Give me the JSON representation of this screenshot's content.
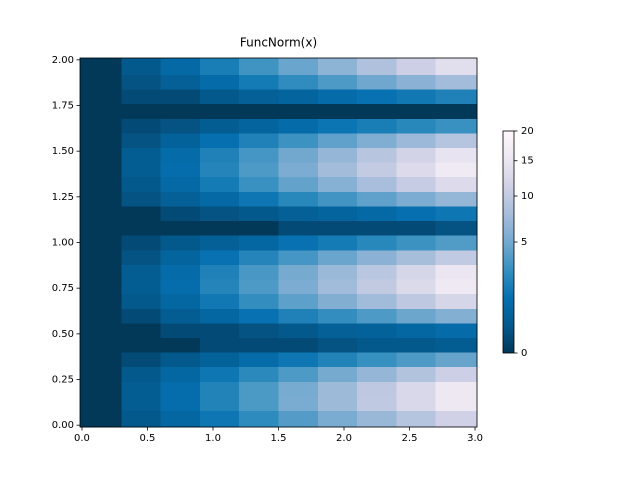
{
  "chart_data": {
    "type": "heatmap",
    "title": "FuncNorm(x)",
    "colormap": [
      "#023858",
      "#045a8d",
      "#0570b0",
      "#3690c0",
      "#74a9cf",
      "#a6bddb",
      "#d0d1e6",
      "#ece7f2",
      "#fff7fb"
    ],
    "norm": "sqrt",
    "xlim": [
      -0.015,
      3.015
    ],
    "ylim": [
      -0.01,
      2.01
    ],
    "xticks": [
      {
        "value": 0,
        "label": "0.0"
      },
      {
        "value": 0.5,
        "label": "0.5"
      },
      {
        "value": 1,
        "label": "1.0"
      },
      {
        "value": 1.5,
        "label": "1.5"
      },
      {
        "value": 2,
        "label": "2.0"
      },
      {
        "value": 2.5,
        "label": "2.5"
      },
      {
        "value": 3,
        "label": "3.0"
      }
    ],
    "yticks": [
      {
        "value": 0,
        "label": "0.00"
      },
      {
        "value": 0.25,
        "label": "0.25"
      },
      {
        "value": 0.5,
        "label": "0.50"
      },
      {
        "value": 0.75,
        "label": "0.75"
      },
      {
        "value": 1,
        "label": "1.00"
      },
      {
        "value": 1.25,
        "label": "1.25"
      },
      {
        "value": 1.5,
        "label": "1.50"
      },
      {
        "value": 1.75,
        "label": "1.75"
      },
      {
        "value": 2,
        "label": "2.00"
      }
    ],
    "clim": [
      0,
      20
    ],
    "cticks": [
      0,
      5,
      10,
      15,
      20
    ],
    "x_edges": [
      -0.015,
      0.3,
      0.6,
      0.9,
      1.2,
      1.5,
      1.8,
      2.1,
      2.4,
      2.7,
      3.015
    ],
    "y_edges": [
      -0.01,
      0.08,
      0.16,
      0.24,
      0.32,
      0.4,
      0.48,
      0.56,
      0.64,
      0.72,
      0.8,
      0.88,
      0.96,
      1.04,
      1.12,
      1.2,
      1.28,
      1.36,
      1.44,
      1.52,
      1.6,
      1.68,
      1.76,
      1.84,
      1.92,
      2.01
    ],
    "z": [
      [
        0.0,
        0.3,
        0.8,
        1.5,
        2.5,
        3.8,
        5.3,
        7.0,
        9.0,
        11.3
      ],
      [
        0.0,
        0.4,
        1.1,
        2.1,
        3.5,
        5.3,
        7.3,
        9.8,
        12.5,
        15.7
      ],
      [
        0.0,
        0.4,
        1.1,
        2.1,
        3.5,
        5.2,
        7.3,
        9.7,
        12.4,
        15.5
      ],
      [
        0.0,
        0.3,
        0.8,
        1.5,
        2.4,
        3.6,
        5.1,
        6.8,
        8.7,
        10.9
      ],
      [
        0.0,
        0.1,
        0.3,
        0.6,
        1.0,
        1.5,
        2.1,
        2.8,
        3.6,
        4.5
      ],
      [
        0.0,
        0.0,
        0.0,
        0.1,
        0.1,
        0.1,
        0.2,
        0.3,
        0.3,
        0.4
      ],
      [
        0.0,
        0.0,
        0.1,
        0.1,
        0.2,
        0.3,
        0.5,
        0.6,
        0.8,
        1.0
      ],
      [
        0.0,
        0.1,
        0.4,
        0.8,
        1.3,
        2.0,
        2.7,
        3.6,
        4.7,
        5.8
      ],
      [
        0.0,
        0.3,
        0.8,
        1.6,
        2.7,
        4.1,
        5.7,
        7.5,
        9.7,
        12.1
      ],
      [
        0.0,
        0.4,
        1.1,
        2.2,
        3.6,
        5.4,
        7.5,
        10.0,
        12.8,
        16.0
      ],
      [
        0.0,
        0.4,
        1.0,
        2.0,
        3.4,
        5.1,
        7.1,
        9.4,
        12.1,
        15.1
      ],
      [
        0.0,
        0.2,
        0.7,
        1.3,
        2.2,
        3.3,
        4.6,
        6.2,
        7.9,
        9.9
      ],
      [
        0.0,
        0.1,
        0.3,
        0.5,
        0.8,
        1.3,
        1.7,
        2.3,
        3.0,
        3.7
      ],
      [
        0.0,
        0.0,
        0.0,
        0.0,
        0.0,
        0.1,
        0.1,
        0.1,
        0.1,
        0.2
      ],
      [
        0.0,
        0.0,
        0.1,
        0.2,
        0.3,
        0.5,
        0.7,
        0.9,
        1.2,
        1.5
      ],
      [
        0.0,
        0.2,
        0.5,
        0.9,
        1.5,
        2.3,
        3.2,
        4.2,
        5.4,
        6.7
      ],
      [
        0.0,
        0.3,
        0.9,
        1.7,
        2.9,
        4.3,
        6.0,
        8.0,
        10.3,
        12.9
      ],
      [
        0.0,
        0.4,
        1.1,
        2.2,
        3.6,
        5.4,
        7.6,
        10.1,
        12.9,
        16.2
      ],
      [
        0.0,
        0.4,
        1.0,
        2.0,
        3.3,
        4.9,
        6.8,
        9.1,
        11.6,
        14.5
      ],
      [
        0.0,
        0.2,
        0.6,
        1.2,
        2.0,
        3.0,
        4.2,
        5.6,
        7.2,
        9.0
      ],
      [
        0.0,
        0.1,
        0.2,
        0.4,
        0.7,
        1.0,
        1.4,
        1.8,
        2.3,
        2.9
      ],
      [
        0.0,
        0.0,
        0.0,
        0.0,
        0.0,
        0.0,
        0.0,
        0.0,
        0.0,
        0.0
      ],
      [
        0.0,
        0.1,
        0.1,
        0.3,
        0.5,
        0.7,
        1.0,
        1.3,
        1.6,
        2.0
      ],
      [
        0.0,
        0.2,
        0.5,
        1.0,
        1.7,
        2.6,
        3.6,
        4.8,
        6.2,
        7.7
      ],
      [
        0.0,
        0.3,
        0.9,
        1.8,
        3.1,
        4.6,
        6.4,
        8.5,
        10.9,
        13.6
      ]
    ]
  }
}
